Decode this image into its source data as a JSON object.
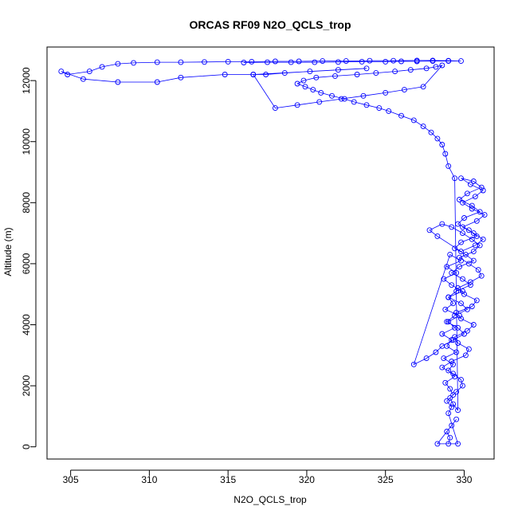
{
  "chart_data": {
    "type": "line",
    "title": "ORCAS RF09 N2O_QCLS_trop",
    "xlabel": "N2O_QCLS_trop",
    "ylabel": "Altitude (m)",
    "xlim": [
      303.5,
      331.9
    ],
    "ylim": [
      -400,
      13100
    ],
    "x_ticks": [
      305,
      310,
      315,
      320,
      325,
      330
    ],
    "y_ticks": [
      0,
      2000,
      4000,
      6000,
      8000,
      10000,
      12000
    ],
    "grid": false,
    "legend": "none",
    "marker": "open-circle",
    "series": [
      {
        "color": "#0000ff",
        "x": [
          329.0,
          329.1,
          328.9,
          329.2,
          329.5,
          328.3,
          329.6,
          329.0,
          329.2,
          328.9,
          329.3,
          329.1,
          328.8,
          329.4,
          329.0,
          329.3,
          328.7,
          329.5,
          328.9,
          329.2,
          328.6,
          329.4,
          329.0,
          329.7,
          328.8,
          329.3,
          329.0,
          329.9,
          329.2,
          328.7,
          329.5,
          328.9,
          329.8,
          329.1,
          326.8,
          327.6,
          328.2,
          328.6,
          329.3,
          330.0,
          329.6,
          328.9,
          329.4,
          330.2,
          329.8,
          329.0,
          329.5,
          330.4,
          329.9,
          329.2,
          329.7,
          330.6,
          330.1,
          329.4,
          329.8,
          330.8,
          330.3,
          329.6,
          330.0,
          331.0,
          330.5,
          329.7,
          330.2,
          331.1,
          330.6,
          329.8,
          330.4,
          331.2,
          330.7,
          329.9,
          330.5,
          331.3,
          330.8,
          329.9,
          330.6,
          331.2,
          330.7,
          329.8,
          328.3,
          327.8,
          328.6,
          329.2,
          329.9,
          330.5,
          331.0,
          330.6,
          329.7,
          330.3,
          330.9,
          331.1,
          330.4,
          329.6,
          330.0,
          330.8,
          330.5,
          329.5,
          329.8,
          330.6,
          330.2,
          329.4,
          329.6,
          330.3,
          330.1,
          329.2,
          328.6,
          329.3,
          329.8,
          329.9,
          329.5,
          329.1,
          329.3,
          329.6,
          329.4,
          329.0,
          328.8,
          328.6,
          328.3,
          327.9,
          327.4,
          326.8,
          326.0,
          325.2,
          324.6,
          323.8,
          323.0,
          322.4,
          321.6,
          320.9,
          320.4,
          319.9,
          319.4,
          319.8,
          320.6,
          321.8,
          323.2,
          324.4,
          325.6,
          326.6,
          327.6,
          328.2,
          328.6,
          327.4,
          326.2,
          325.0,
          323.6,
          322.2,
          320.8,
          319.4,
          318.0,
          316.6,
          317.4,
          318.6,
          320.2,
          322.0,
          323.8,
          316.6,
          314.8,
          312.0,
          310.5,
          308.0,
          305.8,
          304.4,
          304.8,
          306.2,
          307.0,
          308.0,
          309.0,
          310.5,
          312.0,
          313.5,
          315.0,
          316.5,
          318.0,
          319.5,
          321.0,
          322.5,
          324.0,
          325.5,
          327.0,
          328.0,
          329.0,
          329.8,
          329.0,
          328.0,
          327.0,
          326.0,
          325.0,
          323.5,
          322.0,
          320.5,
          319.0,
          317.5,
          316.0
        ],
        "y": [
          100,
          300,
          500,
          700,
          900,
          100,
          100,
          1100,
          1300,
          1500,
          1700,
          1900,
          2100,
          2300,
          2500,
          2700,
          2900,
          3100,
          3300,
          3500,
          3700,
          3900,
          4100,
          4300,
          4500,
          4700,
          4900,
          5100,
          5300,
          5500,
          5700,
          5900,
          6100,
          6300,
          2700,
          2900,
          3100,
          3300,
          3500,
          3700,
          3900,
          4100,
          4300,
          4500,
          4700,
          4900,
          5100,
          5300,
          5500,
          5700,
          5900,
          6100,
          6300,
          6500,
          6700,
          6900,
          7100,
          7300,
          7500,
          7700,
          7900,
          8100,
          8300,
          8500,
          8700,
          8800,
          8600,
          8400,
          8200,
          8000,
          7800,
          7600,
          7400,
          7200,
          7000,
          6800,
          6600,
          6400,
          6900,
          7100,
          7300,
          7200,
          7000,
          6800,
          6600,
          6400,
          6200,
          6000,
          5800,
          5600,
          5400,
          5200,
          5000,
          4800,
          4600,
          4400,
          4200,
          4000,
          3800,
          3600,
          3400,
          3200,
          3000,
          2800,
          2600,
          2400,
          2200,
          2000,
          1800,
          1600,
          1400,
          1200,
          8800,
          9200,
          9600,
          9900,
          10100,
          10300,
          10500,
          10700,
          10850,
          11000,
          11100,
          11200,
          11300,
          11400,
          11500,
          11600,
          11700,
          11800,
          11900,
          12000,
          12100,
          12150,
          12200,
          12250,
          12300,
          12350,
          12400,
          12450,
          12500,
          11800,
          11700,
          11600,
          11500,
          11400,
          11300,
          11200,
          11100,
          12200,
          12200,
          12250,
          12300,
          12350,
          12400,
          12200,
          12200,
          12100,
          11950,
          11950,
          12050,
          12300,
          12200,
          12300,
          12450,
          12550,
          12580,
          12600,
          12600,
          12610,
          12620,
          12620,
          12630,
          12630,
          12640,
          12640,
          12650,
          12650,
          12660,
          12660,
          12650,
          12640,
          12640,
          12640,
          12630,
          12630,
          12620,
          12620,
          12610,
          12600,
          12600,
          12600,
          12590
        ]
      }
    ]
  }
}
